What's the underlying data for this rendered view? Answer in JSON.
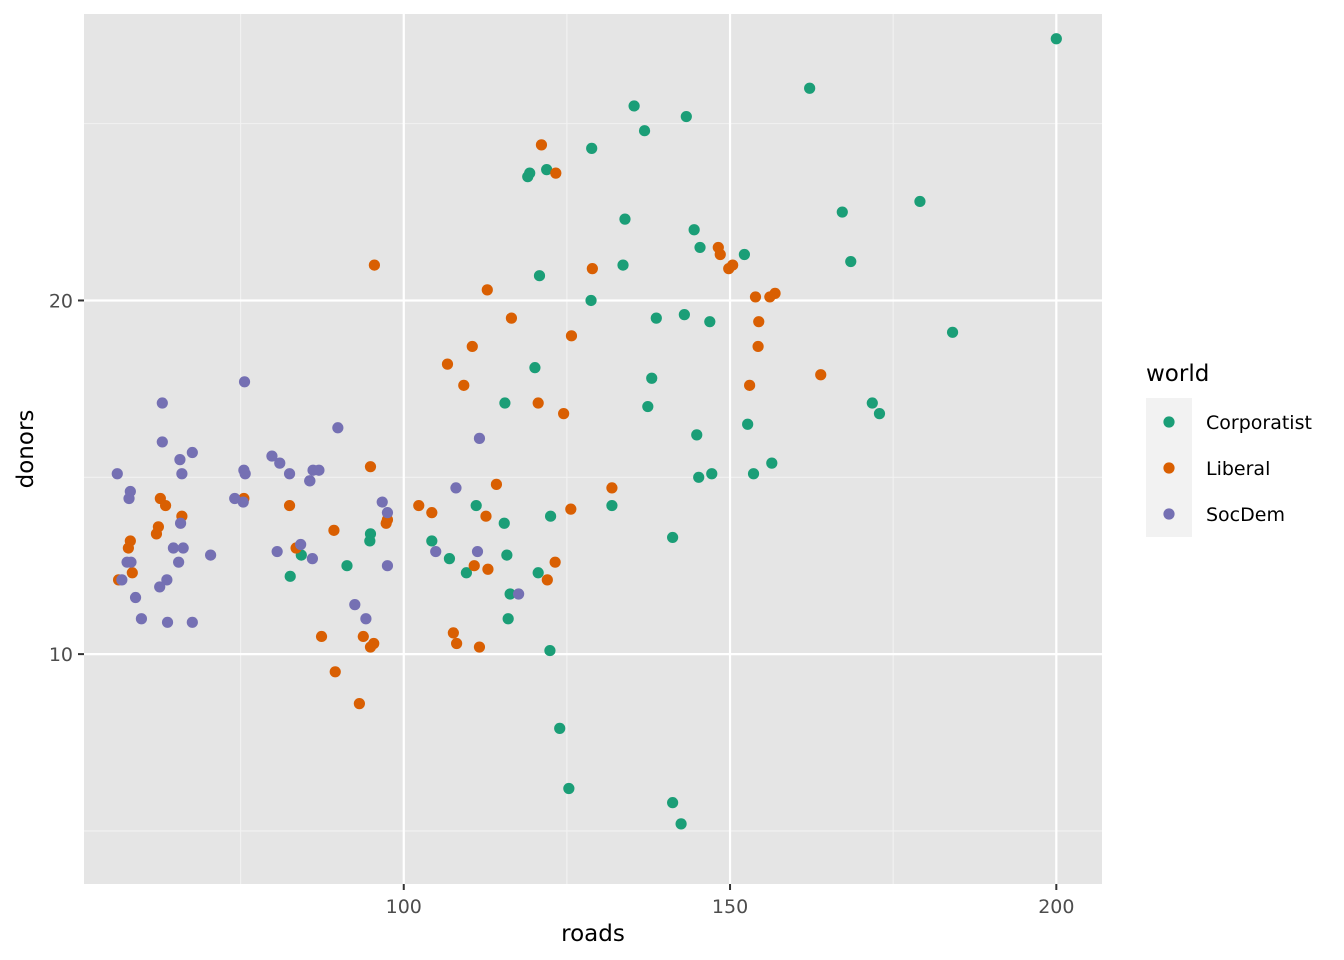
{
  "chart_data": {
    "type": "scatter",
    "xlabel": "roads",
    "ylabel": "donors",
    "xlim": [
      51,
      207
    ],
    "ylim": [
      3.5,
      28.1
    ],
    "x_ticks": [
      100,
      150,
      200
    ],
    "y_ticks": [
      10,
      20
    ],
    "x_tick_labels": [
      "100",
      "150",
      "200"
    ],
    "y_tick_labels": [
      "10",
      "20"
    ],
    "grid": true,
    "legend": {
      "title": "world",
      "position": "right"
    },
    "series": [
      {
        "name": "Corporatist",
        "color": "#1B9E77",
        "points": [
          [
            200,
            27.4
          ],
          [
            162.2,
            26.0
          ],
          [
            135.3,
            25.5
          ],
          [
            143.3,
            25.2
          ],
          [
            136.9,
            24.8
          ],
          [
            128.8,
            24.3
          ],
          [
            121.9,
            23.7
          ],
          [
            119.3,
            23.6
          ],
          [
            119.0,
            23.5
          ],
          [
            179.1,
            22.8
          ],
          [
            167.2,
            22.5
          ],
          [
            133.9,
            22.3
          ],
          [
            144.5,
            22.0
          ],
          [
            145.4,
            21.5
          ],
          [
            152.2,
            21.3
          ],
          [
            168.5,
            21.1
          ],
          [
            133.6,
            21.0
          ],
          [
            120.8,
            20.7
          ],
          [
            128.7,
            20.0
          ],
          [
            143.0,
            19.6
          ],
          [
            138.7,
            19.5
          ],
          [
            146.9,
            19.4
          ],
          [
            184.1,
            19.1
          ],
          [
            120.1,
            18.1
          ],
          [
            138.0,
            17.8
          ],
          [
            171.8,
            17.1
          ],
          [
            115.5,
            17.1
          ],
          [
            137.4,
            17.0
          ],
          [
            172.9,
            16.8
          ],
          [
            152.7,
            16.5
          ],
          [
            144.9,
            16.2
          ],
          [
            156.4,
            15.4
          ],
          [
            147.2,
            15.1
          ],
          [
            145.2,
            15.0
          ],
          [
            153.6,
            15.1
          ],
          [
            111.1,
            14.2
          ],
          [
            131.9,
            14.2
          ],
          [
            122.5,
            13.9
          ],
          [
            115.4,
            13.7
          ],
          [
            94.9,
            13.4
          ],
          [
            94.8,
            13.2
          ],
          [
            104.3,
            13.2
          ],
          [
            141.2,
            13.3
          ],
          [
            84.3,
            12.8
          ],
          [
            107.0,
            12.7
          ],
          [
            115.8,
            12.8
          ],
          [
            91.3,
            12.5
          ],
          [
            109.6,
            12.3
          ],
          [
            120.6,
            12.3
          ],
          [
            82.6,
            12.2
          ],
          [
            116.3,
            11.7
          ],
          [
            116.0,
            11.0
          ],
          [
            122.4,
            10.1
          ],
          [
            123.9,
            7.9
          ],
          [
            125.3,
            6.2
          ],
          [
            141.2,
            5.8
          ],
          [
            142.5,
            5.2
          ]
        ]
      },
      {
        "name": "Liberal",
        "color": "#D95F02",
        "points": [
          [
            121.1,
            24.4
          ],
          [
            123.3,
            23.6
          ],
          [
            95.5,
            21.0
          ],
          [
            149.8,
            20.9
          ],
          [
            148.5,
            21.3
          ],
          [
            148.2,
            21.5
          ],
          [
            150.4,
            21.0
          ],
          [
            128.9,
            20.9
          ],
          [
            112.8,
            20.3
          ],
          [
            153.9,
            20.1
          ],
          [
            156.1,
            20.1
          ],
          [
            156.9,
            20.2
          ],
          [
            154.4,
            19.4
          ],
          [
            116.5,
            19.5
          ],
          [
            125.7,
            19.0
          ],
          [
            110.5,
            18.7
          ],
          [
            154.3,
            18.7
          ],
          [
            106.7,
            18.2
          ],
          [
            163.9,
            17.9
          ],
          [
            109.2,
            17.6
          ],
          [
            153.0,
            17.6
          ],
          [
            120.6,
            17.1
          ],
          [
            124.5,
            16.8
          ],
          [
            94.9,
            15.3
          ],
          [
            114.2,
            14.8
          ],
          [
            131.9,
            14.7
          ],
          [
            75.5,
            14.4
          ],
          [
            62.7,
            14.4
          ],
          [
            63.5,
            14.2
          ],
          [
            82.5,
            14.2
          ],
          [
            102.3,
            14.2
          ],
          [
            104.3,
            14.0
          ],
          [
            112.6,
            13.9
          ],
          [
            125.6,
            14.1
          ],
          [
            66.0,
            13.9
          ],
          [
            97.5,
            13.8
          ],
          [
            97.3,
            13.7
          ],
          [
            62.4,
            13.6
          ],
          [
            89.3,
            13.5
          ],
          [
            62.1,
            13.4
          ],
          [
            58.1,
            13.2
          ],
          [
            57.8,
            13.0
          ],
          [
            83.5,
            13.0
          ],
          [
            123.2,
            12.6
          ],
          [
            110.8,
            12.5
          ],
          [
            112.9,
            12.4
          ],
          [
            58.4,
            12.3
          ],
          [
            56.3,
            12.1
          ],
          [
            122.0,
            12.1
          ],
          [
            87.4,
            10.5
          ],
          [
            93.8,
            10.5
          ],
          [
            107.6,
            10.6
          ],
          [
            108.1,
            10.3
          ],
          [
            111.6,
            10.2
          ],
          [
            95.4,
            10.3
          ],
          [
            94.9,
            10.2
          ],
          [
            89.5,
            9.5
          ],
          [
            93.2,
            8.6
          ]
        ]
      },
      {
        "name": "SocDem",
        "color": "#7570B3",
        "points": [
          [
            75.6,
            17.7
          ],
          [
            63.0,
            17.1
          ],
          [
            89.9,
            16.4
          ],
          [
            111.6,
            16.1
          ],
          [
            63.0,
            16.0
          ],
          [
            67.6,
            15.7
          ],
          [
            79.8,
            15.6
          ],
          [
            81.0,
            15.4
          ],
          [
            65.7,
            15.5
          ],
          [
            75.5,
            15.2
          ],
          [
            86.1,
            15.2
          ],
          [
            87.0,
            15.2
          ],
          [
            56.1,
            15.1
          ],
          [
            66.0,
            15.1
          ],
          [
            75.7,
            15.1
          ],
          [
            82.5,
            15.1
          ],
          [
            85.6,
            14.9
          ],
          [
            85.6,
            14.9
          ],
          [
            58.1,
            14.6
          ],
          [
            57.9,
            14.4
          ],
          [
            74.1,
            14.4
          ],
          [
            75.4,
            14.3
          ],
          [
            96.7,
            14.3
          ],
          [
            108.0,
            14.7
          ],
          [
            97.5,
            14.0
          ],
          [
            65.8,
            13.7
          ],
          [
            84.2,
            13.1
          ],
          [
            64.7,
            13.0
          ],
          [
            66.2,
            13.0
          ],
          [
            80.6,
            12.9
          ],
          [
            104.9,
            12.9
          ],
          [
            111.3,
            12.9
          ],
          [
            70.4,
            12.8
          ],
          [
            86.0,
            12.7
          ],
          [
            57.6,
            12.6
          ],
          [
            58.2,
            12.6
          ],
          [
            65.5,
            12.6
          ],
          [
            97.5,
            12.5
          ],
          [
            56.8,
            12.1
          ],
          [
            63.7,
            12.1
          ],
          [
            62.6,
            11.9
          ],
          [
            117.6,
            11.7
          ],
          [
            58.9,
            11.6
          ],
          [
            92.5,
            11.4
          ],
          [
            94.2,
            11.0
          ],
          [
            59.8,
            11.0
          ],
          [
            63.8,
            10.9
          ],
          [
            67.6,
            10.9
          ]
        ]
      }
    ]
  }
}
